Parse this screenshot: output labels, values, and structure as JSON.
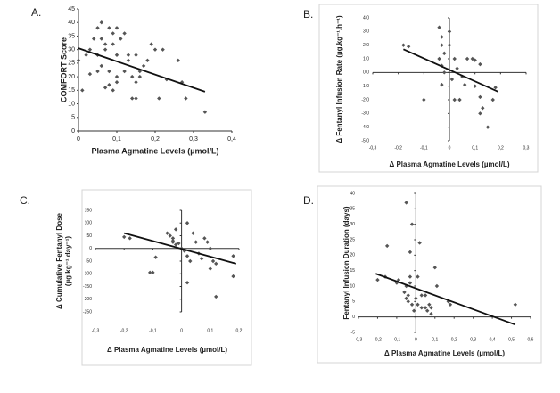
{
  "chart_data": [
    {
      "type": "scatter",
      "panel_label": "A.",
      "color": "#555555",
      "x_label": "Plasma Agmatine Levels (µmol/L)",
      "y_label": [
        "COMFORT Score"
      ],
      "xlim": [
        0,
        0.4
      ],
      "ylim": [
        0,
        45
      ],
      "xticks": [
        0,
        {
          "value": 0.1,
          "label": "0,1"
        },
        {
          "value": 0.2,
          "label": "0,2"
        },
        {
          "value": 0.3,
          "label": "0,3"
        },
        {
          "value": 0.4,
          "label": "0,4"
        }
      ],
      "yticks": [
        0,
        5,
        10,
        15,
        20,
        25,
        30,
        35,
        40,
        45
      ],
      "axes_at_zero": false,
      "x": [
        0.06,
        0.08,
        0.09,
        0.05,
        0.1,
        0.12,
        0.04,
        0.06,
        0.07,
        0.09,
        0.11,
        0.13,
        0.02,
        0.03,
        0.05,
        0.07,
        0.1,
        0.13,
        0.15,
        0.19,
        0.2,
        0.22,
        0.18,
        0.26,
        0.05,
        0.06,
        0.08,
        0.1,
        0.1,
        0.12,
        0.14,
        0.16,
        0.15,
        0.03,
        0.08,
        0.07,
        0.09,
        0.14,
        0.15,
        0.21,
        0.23,
        0.27,
        0.28,
        0.33,
        0,
        0.01,
        0.17,
        0.16
      ],
      "values": [
        40,
        38,
        36,
        38,
        38,
        36,
        34,
        34,
        32,
        32,
        34,
        28,
        28,
        30,
        28,
        30,
        28,
        26,
        28,
        32,
        30,
        30,
        26,
        26,
        22,
        24,
        22,
        20,
        18,
        22,
        20,
        22,
        18,
        21,
        17,
        16,
        15,
        12,
        12,
        12,
        19,
        18,
        12,
        7,
        26,
        15,
        24,
        20
      ],
      "trendline": {
        "x": [
          0,
          0.33
        ],
        "y": [
          30.5,
          14.5
        ]
      }
    },
    {
      "type": "scatter",
      "panel_label": "B.",
      "color": "#555555",
      "x_label": "Δ Plasma Agmatine Levels (µmol/L)",
      "y_label": [
        "Δ Fentanyl Infusion Rate (µg.kg⁻¹.h⁻¹)"
      ],
      "xlim": [
        -0.3,
        0.3
      ],
      "ylim": [
        -5,
        4
      ],
      "xticks": [
        {
          "value": -0.3,
          "label": "-0,3"
        },
        {
          "value": -0.2,
          "label": "-0,2"
        },
        {
          "value": -0.1,
          "label": "-0,1"
        },
        0,
        {
          "value": 0.1,
          "label": "0,1"
        },
        {
          "value": 0.2,
          "label": "0,2"
        },
        {
          "value": 0.3,
          "label": "0,3"
        }
      ],
      "yticks": [
        {
          "value": 4,
          "label": "4,0"
        },
        {
          "value": 3,
          "label": "3,0"
        },
        {
          "value": 2,
          "label": "2,0"
        },
        {
          "value": 1,
          "label": "1,0"
        },
        {
          "value": 0,
          "label": "0,0"
        },
        {
          "value": -1,
          "label": "-1,0"
        },
        {
          "value": -2,
          "label": "-2,0"
        },
        {
          "value": -3,
          "label": "-3,0"
        },
        {
          "value": -4,
          "label": "-4,0"
        },
        {
          "value": -5,
          "label": "-5,0"
        }
      ],
      "axes_at_zero": true,
      "x": [
        -0.18,
        -0.16,
        -0.1,
        -0.04,
        -0.03,
        -0.03,
        -0.02,
        -0.04,
        -0.03,
        -0.02,
        -0.03,
        0,
        0,
        0.02,
        0.03,
        0.01,
        0.02,
        0.04,
        0.05,
        0.06,
        0.07,
        0.09,
        0.1,
        0.12,
        0.1,
        0.12,
        0.13,
        0.12,
        0.15,
        0.18,
        0.17
      ],
      "values": [
        2,
        1.9,
        -2,
        3.3,
        2.6,
        2,
        1.4,
        1,
        0.5,
        0,
        -0.9,
        3,
        2,
        1,
        0.3,
        -0.5,
        -2,
        -2,
        -0.3,
        -0.9,
        1,
        1,
        0.9,
        0.6,
        -1,
        -1.8,
        -2.6,
        -3,
        -4,
        -1.1,
        -2
      ],
      "trendline": {
        "x": [
          -0.18,
          0.19
        ],
        "y": [
          1.7,
          -1.4
        ]
      }
    },
    {
      "type": "scatter",
      "panel_label": "C.",
      "color": "#555555",
      "x_label": "Δ Plasma Agmatine Levels (µmol/L)",
      "y_label": [
        "Δ Cumulative Fentanyl Dose",
        "(µg.kg⁻¹.day⁻¹)"
      ],
      "xlim": [
        -0.3,
        0.2
      ],
      "ylim": [
        -250,
        150
      ],
      "xticks": [
        {
          "value": -0.3,
          "label": "-0,3"
        },
        {
          "value": -0.2,
          "label": "-0,2"
        },
        {
          "value": -0.1,
          "label": "-0,1"
        },
        0,
        {
          "value": 0.1,
          "label": "0,1"
        },
        {
          "value": 0.2,
          "label": "0,2"
        }
      ],
      "yticks": [
        150,
        100,
        50,
        0,
        -50,
        -100,
        -150,
        -200,
        -250
      ],
      "axes_at_zero": true,
      "x": [
        -0.2,
        -0.18,
        -0.09,
        -0.1,
        -0.11,
        -0.05,
        -0.04,
        -0.03,
        -0.03,
        -0.02,
        -0.03,
        -0.01,
        0,
        0.01,
        0.02,
        0.02,
        0.03,
        0.02,
        0.04,
        0.05,
        0.06,
        0.07,
        0.08,
        0.09,
        0.1,
        0.11,
        0.12,
        0.1,
        0.12,
        0.18,
        0.18,
        -0.02
      ],
      "values": [
        45,
        40,
        -35,
        -95,
        -95,
        60,
        50,
        40,
        25,
        15,
        30,
        20,
        0,
        -10,
        100,
        -30,
        -50,
        -135,
        60,
        25,
        -20,
        -40,
        40,
        25,
        0,
        -50,
        -60,
        -80,
        -190,
        -110,
        -30,
        75
      ],
      "trendline": {
        "x": [
          -0.2,
          0.19
        ],
        "y": [
          60,
          -60
        ]
      }
    },
    {
      "type": "scatter",
      "panel_label": "D.",
      "color": "#555555",
      "x_label": "Δ Plasma Agmatine Levels (µmol/L)",
      "y_label": [
        "Fentanyl Infusion Duration (days)"
      ],
      "xlim": [
        -0.3,
        0.6
      ],
      "ylim": [
        -5,
        40
      ],
      "xticks": [
        {
          "value": -0.3,
          "label": "-0,3"
        },
        {
          "value": -0.2,
          "label": "-0,2"
        },
        {
          "value": -0.1,
          "label": "-0,1"
        },
        0,
        {
          "value": 0.1,
          "label": "0,1"
        },
        {
          "value": 0.2,
          "label": "0,2"
        },
        {
          "value": 0.3,
          "label": "0,3"
        },
        {
          "value": 0.4,
          "label": "0,4"
        },
        {
          "value": 0.5,
          "label": "0,5"
        },
        {
          "value": 0.6,
          "label": "0,6"
        }
      ],
      "yticks": [
        40,
        35,
        30,
        25,
        20,
        15,
        10,
        5,
        0,
        -5
      ],
      "axes_at_zero": true,
      "x": [
        -0.15,
        -0.05,
        -0.03,
        -0.03,
        -0.02,
        -0.05,
        -0.06,
        -0.05,
        -0.04,
        -0.04,
        -0.03,
        -0.02,
        -0.01,
        0,
        0.01,
        0.02,
        0.03,
        0.03,
        0.05,
        0.06,
        0.07,
        0.08,
        0.08,
        0.1,
        0.11,
        0.17,
        0.18,
        0.52,
        -0.2,
        -0.16,
        -0.09,
        -0.1,
        0.01,
        0.05
      ],
      "values": [
        23,
        37,
        21,
        13,
        30,
        10,
        8,
        6,
        5,
        7,
        11,
        4,
        2,
        6,
        4,
        24,
        7,
        3,
        7,
        2,
        4,
        1,
        3,
        16,
        10,
        5,
        4,
        4,
        12,
        13,
        12,
        11,
        13,
        3
      ],
      "trendline": {
        "x": [
          -0.21,
          0.52
        ],
        "y": [
          14,
          -2.5
        ]
      }
    }
  ]
}
